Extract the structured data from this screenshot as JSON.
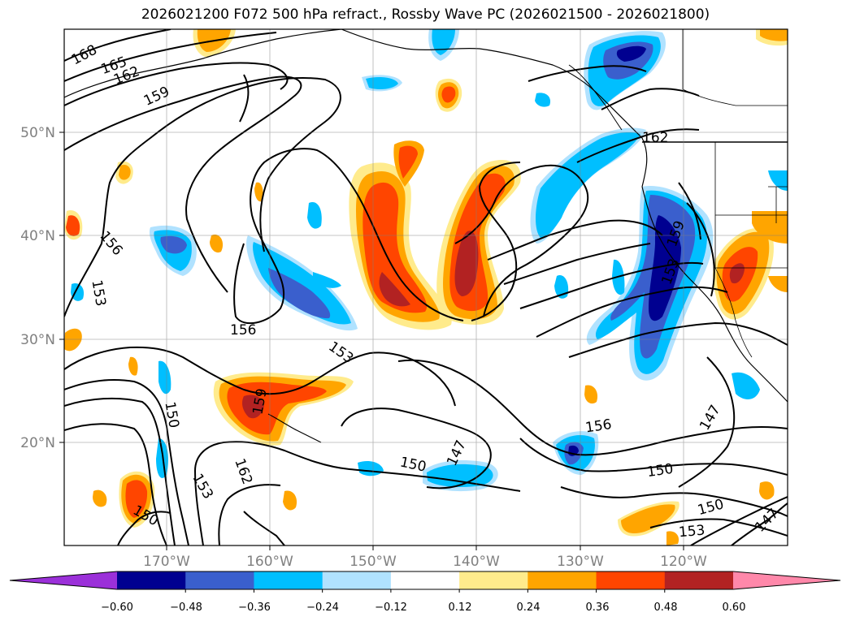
{
  "title": "2026021200 F072 500 hPa refract., Rossby Wave PC (2026021500 - 2026021800)",
  "lat_labels": [
    "50°N",
    "40°N",
    "30°N",
    "20°N"
  ],
  "lon_labels": [
    "170°W",
    "160°W",
    "150°W",
    "140°W",
    "130°W",
    "120°W"
  ],
  "colorbar": {
    "ticks": [
      "−0.60",
      "−0.48",
      "−0.36",
      "−0.24",
      "−0.12",
      "0.12",
      "0.24",
      "0.36",
      "0.48",
      "0.60"
    ],
    "colors": [
      "#9b30d9",
      "#000090",
      "#3a5fcd",
      "#00bfff",
      "#b0e2ff",
      "#ffffff",
      "#ffeb8c",
      "#ffa500",
      "#ff4500",
      "#b22222",
      "#ff88aa"
    ]
  },
  "contour_labels": [
    "168",
    "165",
    "162",
    "159",
    "162",
    "156",
    "153",
    "156",
    "153",
    "159",
    "150",
    "162",
    "153",
    "150",
    "150",
    "147",
    "156",
    "150",
    "147",
    "150",
    "147",
    "153",
    "159",
    "153"
  ],
  "colors": {
    "neg_strong": "#000090",
    "neg_mid": "#3a5fcd",
    "neg_light": "#00bfff",
    "neg_faint": "#b0e2ff",
    "pos_faint": "#ffeb8c",
    "pos_light": "#ffa500",
    "pos_mid": "#ff4500",
    "pos_strong": "#b22222"
  }
}
